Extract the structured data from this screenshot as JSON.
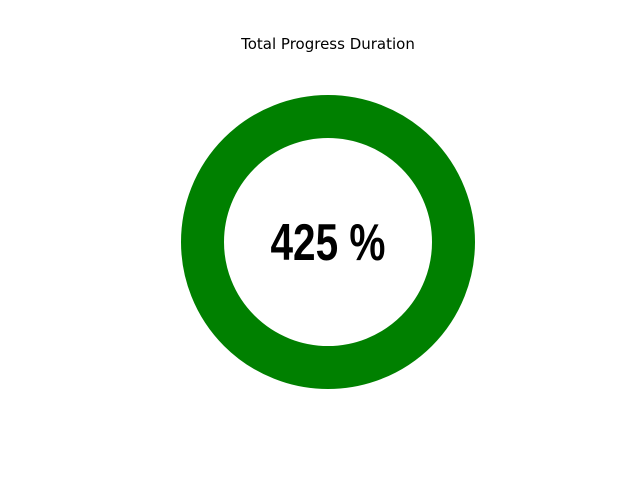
{
  "chart_data": {
    "type": "pie",
    "title": "Total Progress Duration",
    "center_label": "425 %",
    "value_percent": 425,
    "ring_color": "#008000",
    "background_color": "#ffffff"
  }
}
